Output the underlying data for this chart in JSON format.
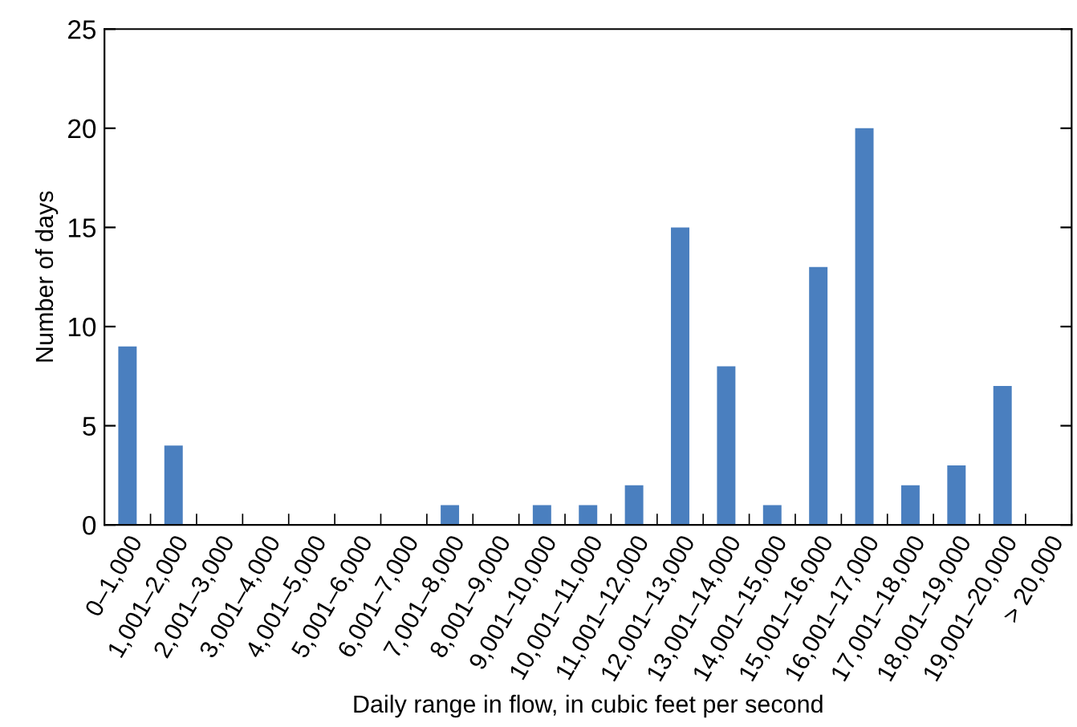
{
  "chart_data": {
    "type": "bar",
    "xlabel": "Daily range in flow, in cubic feet per second",
    "ylabel": "Number of days",
    "categories": [
      "0–1,000",
      "1,001–2,000",
      "2,001–3,000",
      "3,001–4,000",
      "4,001–5,000",
      "5,001–6,000",
      "6,001–7,000",
      "7,001–8,000",
      "8,001–9,000",
      "9,001–10,000",
      "10,001–11,000",
      "11,001–12,000",
      "12,001–13,000",
      "13,001–14,000",
      "14,001–15,000",
      "15,001–16,000",
      "16,001–17,000",
      "17,001–18,000",
      "18,001–19,000",
      "19,001–20,000",
      "> 20,000"
    ],
    "values": [
      9,
      4,
      0,
      0,
      0,
      0,
      0,
      1,
      0,
      1,
      1,
      2,
      15,
      8,
      1,
      13,
      20,
      2,
      3,
      7,
      0
    ],
    "color": "#4a7fbf",
    "ylim": [
      0,
      25
    ],
    "yticks": [
      0,
      5,
      10,
      15,
      20,
      25
    ],
    "grid": false,
    "legend": false
  }
}
